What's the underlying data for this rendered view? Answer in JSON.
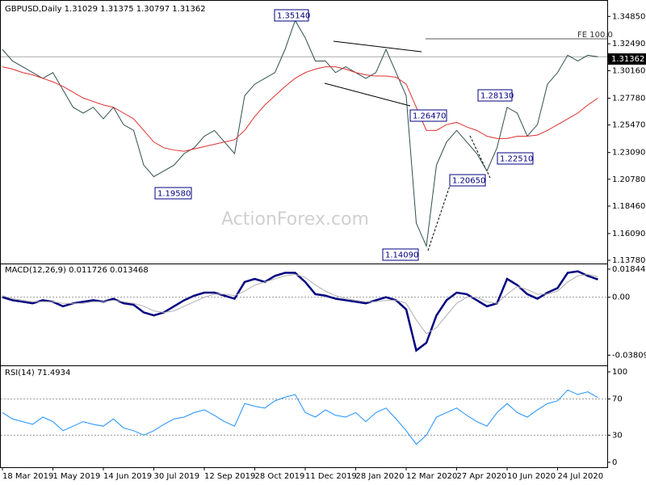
{
  "chart_data": [
    {
      "type": "line",
      "title": "GBPUSD,Daily  1.31029 1.31375 1.30797 1.31362",
      "ylim": [
        1.135,
        1.362
      ],
      "yticks": [
        {
          "value": 1.3485,
          "label": "1.34850"
        },
        {
          "value": 1.3249,
          "label": "1.32490"
        },
        {
          "value": 1.3016,
          "label": "1.30160"
        },
        {
          "value": 1.2778,
          "label": "1.27780"
        },
        {
          "value": 1.2547,
          "label": "1.25470"
        },
        {
          "value": 1.2309,
          "label": "1.23090"
        },
        {
          "value": 1.2078,
          "label": "1.20780"
        },
        {
          "value": 1.1846,
          "label": "1.18460"
        },
        {
          "value": 1.1609,
          "label": "1.16090"
        },
        {
          "value": 1.1378,
          "label": "1.13780"
        }
      ],
      "series": [
        {
          "color": "#2f4f4f",
          "values": [
            1.32,
            1.31,
            1.305,
            1.3,
            1.295,
            1.3,
            1.285,
            1.27,
            1.265,
            1.27,
            1.26,
            1.27,
            1.255,
            1.25,
            1.22,
            1.21,
            1.215,
            1.22,
            1.23,
            1.235,
            1.245,
            1.25,
            1.24,
            1.23,
            1.28,
            1.29,
            1.295,
            1.3,
            1.32,
            1.345,
            1.33,
            1.31,
            1.31,
            1.3,
            1.305,
            1.3,
            1.295,
            1.3,
            1.32,
            1.3,
            1.28,
            1.17,
            1.15,
            1.22,
            1.24,
            1.25,
            1.24,
            1.23,
            1.215,
            1.235,
            1.27,
            1.265,
            1.245,
            1.255,
            1.29,
            1.3,
            1.315,
            1.31,
            1.315,
            1.3136
          ]
        },
        {
          "color": "#e03030",
          "values": [
            1.305,
            1.303,
            1.3,
            1.298,
            1.295,
            1.292,
            1.288,
            1.283,
            1.278,
            1.275,
            1.272,
            1.27,
            1.265,
            1.26,
            1.25,
            1.24,
            1.235,
            1.233,
            1.232,
            1.234,
            1.236,
            1.238,
            1.24,
            1.242,
            1.25,
            1.262,
            1.272,
            1.28,
            1.288,
            1.295,
            1.3,
            1.303,
            1.305,
            1.305,
            1.303,
            1.3,
            1.298,
            1.297,
            1.297,
            1.296,
            1.29,
            1.27,
            1.25,
            1.25,
            1.255,
            1.257,
            1.253,
            1.25,
            1.245,
            1.243,
            1.243,
            1.245,
            1.245,
            1.246,
            1.25,
            1.255,
            1.26,
            1.265,
            1.272,
            1.278
          ]
        }
      ],
      "last_price_label": "1.31362",
      "annotations": [
        "1.35140",
        "1.19580",
        "1.14090",
        "1.26470",
        "1.28130",
        "1.20650",
        "1.22510",
        "FE 100.0"
      ],
      "watermark": "ActionForex.com"
    },
    {
      "type": "line",
      "title": "MACD(12,26,9) 0.011726 0.013468",
      "ylim": [
        -0.0448,
        0.0216
      ],
      "yticks": [
        0.018442,
        {
          "value": 0,
          "label": "0.00"
        },
        -0.038095
      ],
      "series": [
        {
          "color": "#000080",
          "values": [
            0.0,
            -0.002,
            -0.003,
            -0.004,
            -0.002,
            -0.003,
            -0.006,
            -0.004,
            -0.003,
            -0.002,
            -0.003,
            -0.001,
            -0.004,
            -0.005,
            -0.01,
            -0.012,
            -0.01,
            -0.006,
            -0.002,
            0.001,
            0.003,
            0.003,
            0.001,
            -0.001,
            0.01,
            0.012,
            0.01,
            0.014,
            0.016,
            0.016,
            0.01,
            0.002,
            0.001,
            -0.001,
            -0.002,
            -0.003,
            -0.004,
            -0.002,
            0.0,
            -0.002,
            -0.008,
            -0.035,
            -0.03,
            -0.012,
            -0.002,
            0.003,
            0.002,
            -0.002,
            -0.006,
            -0.004,
            0.012,
            0.008,
            0.002,
            -0.001,
            0.003,
            0.006,
            0.016,
            0.017,
            0.014,
            0.0117
          ]
        },
        {
          "color": "#b0b0b0",
          "values": [
            0.001,
            -0.001,
            -0.002,
            -0.003,
            -0.003,
            -0.003,
            -0.004,
            -0.004,
            -0.004,
            -0.003,
            -0.003,
            -0.002,
            -0.003,
            -0.004,
            -0.006,
            -0.009,
            -0.01,
            -0.009,
            -0.006,
            -0.003,
            0.0,
            0.002,
            0.002,
            0.001,
            0.004,
            0.008,
            0.01,
            0.012,
            0.014,
            0.015,
            0.013,
            0.008,
            0.004,
            0.001,
            -0.001,
            -0.002,
            -0.003,
            -0.003,
            -0.002,
            -0.002,
            -0.004,
            -0.015,
            -0.024,
            -0.02,
            -0.012,
            -0.004,
            0.0,
            0.0,
            -0.003,
            -0.004,
            0.002,
            0.007,
            0.005,
            0.002,
            0.002,
            0.004,
            0.01,
            0.014,
            0.015,
            0.0135
          ]
        }
      ]
    },
    {
      "type": "line",
      "title": "RSI(14) 71.4934",
      "ylim": [
        -5.4,
        106.3
      ],
      "yticks": [
        100,
        70,
        30,
        0
      ],
      "categories": [
        "18 Mar 2019",
        null,
        null,
        null,
        null,
        "1 May 2019",
        null,
        null,
        null,
        null,
        "14 Jun 2019",
        null,
        null,
        null,
        null,
        "30 Jul 2019",
        null,
        null,
        null,
        null,
        "12 Sep 2019",
        null,
        null,
        null,
        null,
        "28 Oct 2019",
        null,
        null,
        null,
        null,
        "11 Dec 2019",
        null,
        null,
        null,
        null,
        "28 Jan 2020",
        null,
        null,
        null,
        null,
        "12 Mar 2020",
        null,
        null,
        null,
        null,
        "27 Apr 2020",
        null,
        null,
        null,
        null,
        "10 Jun 2020",
        null,
        null,
        null,
        null,
        "24 Jul 2020",
        null,
        null,
        null,
        null
      ],
      "series": [
        {
          "color": "#1e90ff",
          "values": [
            55,
            48,
            45,
            42,
            50,
            45,
            35,
            40,
            45,
            42,
            40,
            48,
            38,
            35,
            30,
            35,
            42,
            48,
            50,
            55,
            58,
            52,
            45,
            40,
            65,
            62,
            60,
            68,
            72,
            75,
            55,
            50,
            58,
            52,
            50,
            55,
            45,
            55,
            60,
            48,
            35,
            20,
            30,
            50,
            55,
            60,
            52,
            45,
            40,
            55,
            65,
            55,
            50,
            58,
            65,
            68,
            80,
            75,
            78,
            71.4934
          ]
        }
      ]
    }
  ]
}
